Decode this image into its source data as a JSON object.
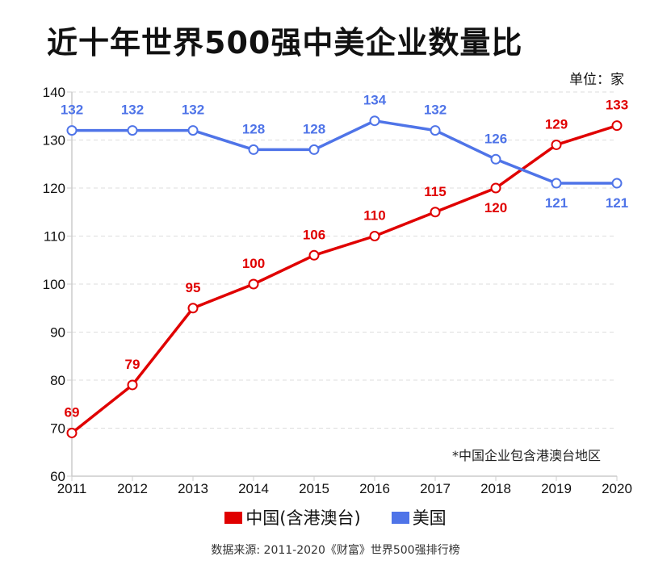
{
  "chart_data": {
    "type": "line",
    "title": "近十年世界500强中美企业数量比",
    "unit_label": "单位：家",
    "categories": [
      "2011",
      "2012",
      "2013",
      "2014",
      "2015",
      "2016",
      "2017",
      "2018",
      "2019",
      "2020"
    ],
    "series": [
      {
        "name": "中国(含港澳台)",
        "color": "#e00000",
        "values": [
          69,
          79,
          95,
          100,
          106,
          110,
          115,
          120,
          129,
          133
        ]
      },
      {
        "name": "美国",
        "color": "#4f74e8",
        "values": [
          132,
          132,
          132,
          128,
          128,
          134,
          132,
          126,
          121,
          121
        ]
      }
    ],
    "ylim": [
      60,
      140
    ],
    "yticks": [
      60,
      70,
      80,
      90,
      100,
      110,
      120,
      130,
      140
    ],
    "grid": true,
    "legend": "bottom",
    "note": "*中国企业包含港澳台地区",
    "source": "数据来源: 2011-2020《财富》世界500强排行榜"
  }
}
